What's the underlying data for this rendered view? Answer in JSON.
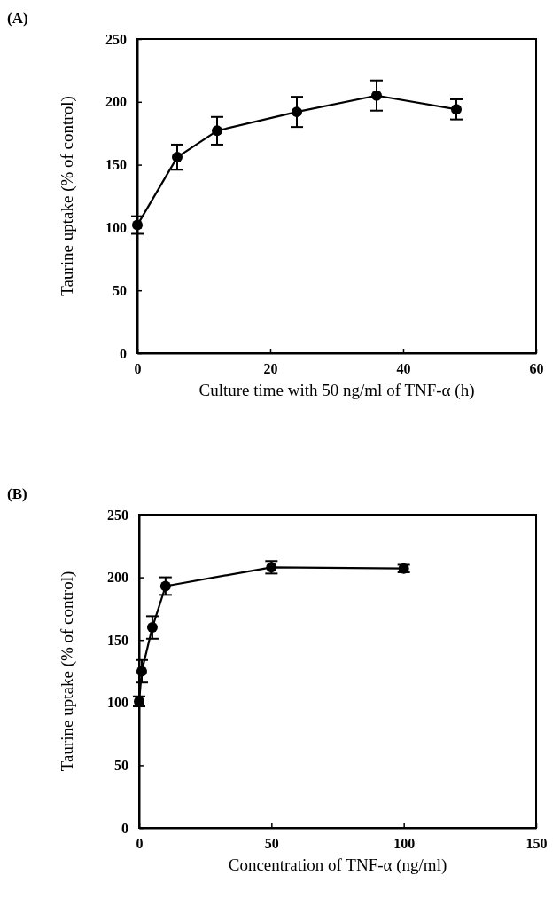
{
  "chart_data": [
    {
      "type": "line",
      "title": "(A)",
      "xlabel": "Culture time with 50 ng/ml of TNF-α (h)",
      "ylabel": "Taurine uptake (% of control)",
      "x": [
        0,
        6,
        12,
        24,
        36,
        48
      ],
      "series": [
        {
          "color": "#000000",
          "values": [
            102,
            156,
            177,
            192,
            205,
            194
          ],
          "errors": [
            7,
            10,
            11,
            12,
            12,
            8
          ]
        }
      ],
      "xlim": [
        0,
        60
      ],
      "xticks": [
        0,
        20,
        40,
        60
      ],
      "ylim": [
        0,
        250
      ],
      "yticks": [
        0,
        50,
        100,
        150,
        200,
        250
      ],
      "marker": "circle",
      "grid": false
    },
    {
      "type": "line",
      "title": "(B)",
      "xlabel": "Concentration of TNF-α (ng/ml)",
      "ylabel": "Taurine uptake (% of control)",
      "x": [
        0,
        1,
        5,
        10,
        50,
        100
      ],
      "series": [
        {
          "color": "#000000",
          "values": [
            101,
            125,
            160,
            193,
            208,
            207
          ],
          "errors": [
            4,
            9,
            9,
            7,
            5,
            3
          ]
        }
      ],
      "xlim": [
        0,
        150
      ],
      "xticks": [
        0,
        50,
        100,
        150
      ],
      "ylim": [
        0,
        250
      ],
      "yticks": [
        0,
        50,
        100,
        150,
        200,
        250
      ],
      "marker": "circle",
      "grid": false
    }
  ]
}
